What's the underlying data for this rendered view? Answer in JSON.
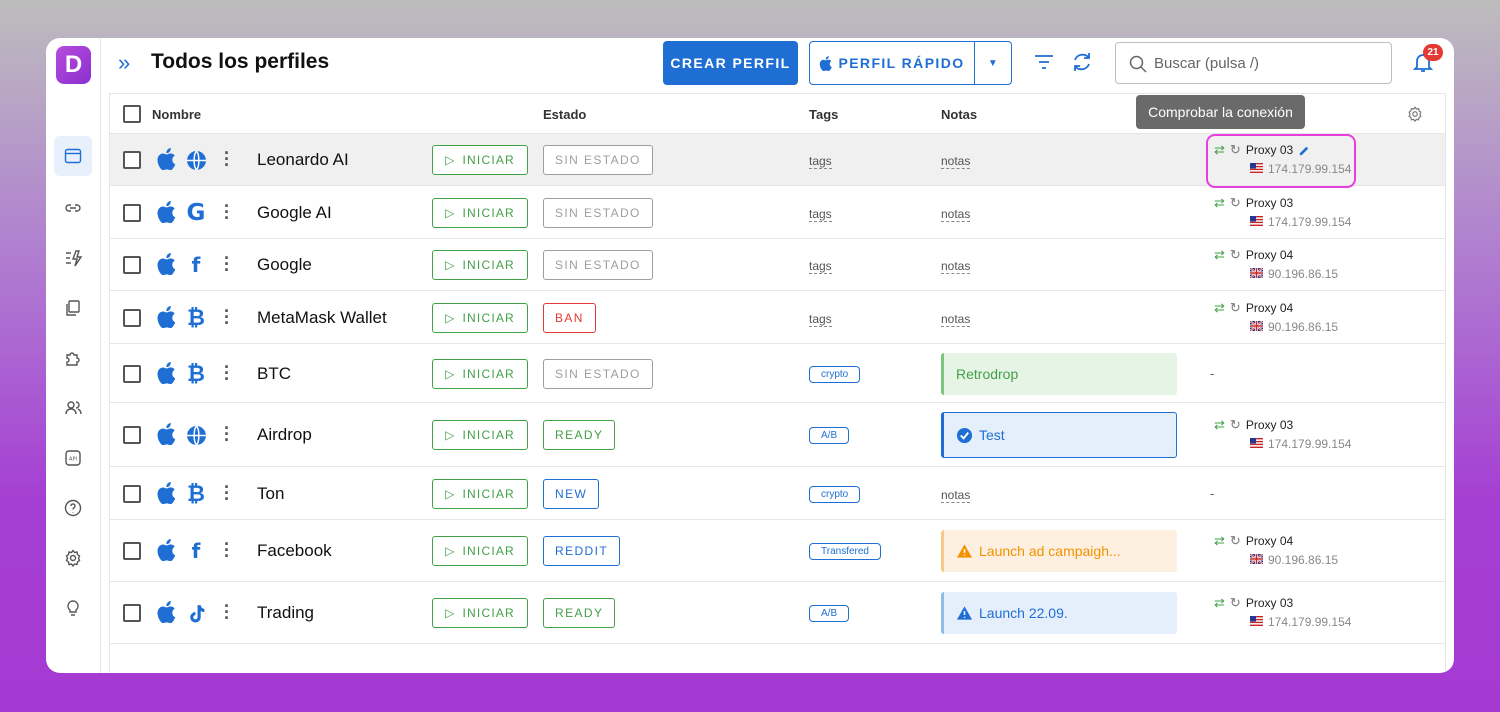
{
  "app": {
    "logo_letter": "D",
    "title": "Todos los perfiles"
  },
  "header": {
    "create_label": "CREAR PERFIL",
    "quick_label": "PERFIL RÁPIDO",
    "search_placeholder": "Buscar (pulsa /)",
    "notifications_count": "21"
  },
  "sidebar": {
    "items": [
      {
        "icon": "browser-window-icon",
        "active": true
      },
      {
        "icon": "link-icon",
        "active": false
      },
      {
        "icon": "automation-icon",
        "active": false
      },
      {
        "icon": "copy-icon",
        "active": false
      },
      {
        "icon": "extensions-icon",
        "active": false
      },
      {
        "icon": "team-icon",
        "active": false
      },
      {
        "icon": "api-icon",
        "active": false
      },
      {
        "icon": "help-icon",
        "active": false
      },
      {
        "icon": "settings-icon",
        "active": false
      },
      {
        "icon": "lightbulb-icon",
        "active": false
      }
    ]
  },
  "table": {
    "columns": {
      "name": "Nombre",
      "status": "Estado",
      "tags": "Tags",
      "notes": "Notas"
    },
    "tooltip": "Comprobar la conexión",
    "start_label": "INICIAR",
    "tags_placeholder": "tags",
    "notes_placeholder": "notas",
    "empty_proxy": "-",
    "rows": [
      {
        "name": "Leonardo AI",
        "site_icon": "globe-icon",
        "status": "SIN ESTADO",
        "proxy": "Proxy 03",
        "ip": "174.179.99.154",
        "country": "US"
      },
      {
        "name": "Google AI",
        "site_icon": "google-icon",
        "status": "SIN ESTADO",
        "proxy": "Proxy 03",
        "ip": "174.179.99.154",
        "country": "US"
      },
      {
        "name": "Google",
        "site_icon": "facebook-icon",
        "status": "SIN ESTADO",
        "proxy": "Proxy 04",
        "ip": "90.196.86.15",
        "country": "UK"
      },
      {
        "name": "MetaMask Wallet",
        "site_icon": "bitcoin-icon",
        "status": "BAN",
        "proxy": "Proxy 04",
        "ip": "90.196.86.15",
        "country": "UK"
      },
      {
        "name": "BTC",
        "site_icon": "bitcoin-icon",
        "status": "SIN ESTADO",
        "tag": "crypto",
        "note": "Retrodrop"
      },
      {
        "name": "Airdrop",
        "site_icon": "globe-icon",
        "status": "READY",
        "tag": "A/B",
        "note": "Test",
        "proxy": "Proxy 03",
        "ip": "174.179.99.154",
        "country": "US"
      },
      {
        "name": "Ton",
        "site_icon": "bitcoin-icon",
        "status": "NEW",
        "tag": "crypto"
      },
      {
        "name": "Facebook",
        "site_icon": "facebook-icon",
        "status": "REDDIT",
        "tag": "Transfered",
        "note": "Launch ad campaigh...",
        "proxy": "Proxy 04",
        "ip": "90.196.86.15",
        "country": "UK"
      },
      {
        "name": "Trading",
        "site_icon": "tiktok-icon",
        "status": "READY",
        "tag": "A/B",
        "note": "Launch 22.09.",
        "proxy": "Proxy 03",
        "ip": "174.179.99.154",
        "country": "US"
      }
    ]
  },
  "colors": {
    "accent": "#1f6ed4",
    "start_green": "#43a047",
    "ban_red": "#e53935",
    "highlight_ring": "#e83ee0"
  }
}
